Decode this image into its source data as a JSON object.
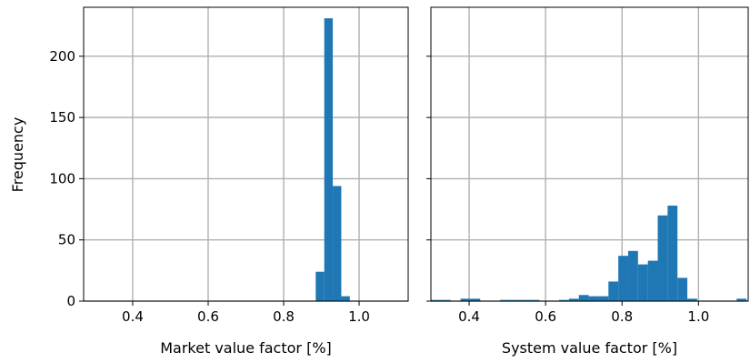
{
  "chart_data": [
    {
      "type": "bar",
      "xlabel": "Market value factor [%]",
      "ylabel": "Frequency",
      "xlim": [
        0.27,
        1.13
      ],
      "ylim": [
        0,
        240
      ],
      "grid": true,
      "xticks": [
        "0.4",
        "0.6",
        "0.8",
        "1.0"
      ],
      "xtick_values": [
        0.4,
        0.6,
        0.8,
        1.0
      ],
      "yticks": [
        "0",
        "50",
        "100",
        "150",
        "200"
      ],
      "ytick_values": [
        0,
        50,
        100,
        150,
        200
      ],
      "bin_width": 0.0226,
      "bin_starts": [
        0.885,
        0.9076,
        0.9302,
        0.9528
      ],
      "values": [
        24,
        231,
        94,
        4
      ],
      "color": "#1f77b4"
    },
    {
      "type": "bar",
      "xlabel": "System value factor [%]",
      "ylabel": "",
      "xlim": [
        0.3,
        1.13
      ],
      "ylim": [
        0,
        240
      ],
      "grid": true,
      "xticks": [
        "0.4",
        "0.6",
        "0.8",
        "1.0"
      ],
      "xtick_values": [
        0.4,
        0.6,
        0.8,
        1.0
      ],
      "yticks": [
        "0",
        "50",
        "100",
        "150",
        "200"
      ],
      "ytick_values": [
        0,
        50,
        100,
        150,
        200
      ],
      "bin_width": 0.0258,
      "bin_starts": [
        0.3,
        0.3258,
        0.3516,
        0.3774,
        0.4032,
        0.429,
        0.4548,
        0.4806,
        0.5064,
        0.5322,
        0.558,
        0.5838,
        0.6096,
        0.6354,
        0.6612,
        0.687,
        0.7128,
        0.7386,
        0.7644,
        0.7902,
        0.816,
        0.8418,
        0.8676,
        0.8934,
        0.9192,
        0.945,
        0.9708,
        0.9966,
        1.0224,
        1.0482,
        1.074,
        1.0998
      ],
      "values": [
        1,
        1,
        0,
        2,
        2,
        0,
        0,
        1,
        1,
        1,
        1,
        0,
        0,
        1,
        2,
        5,
        4,
        4,
        16,
        37,
        41,
        30,
        33,
        70,
        78,
        19,
        2,
        0,
        0,
        0,
        0,
        2
      ],
      "color": "#1f77b4"
    }
  ]
}
